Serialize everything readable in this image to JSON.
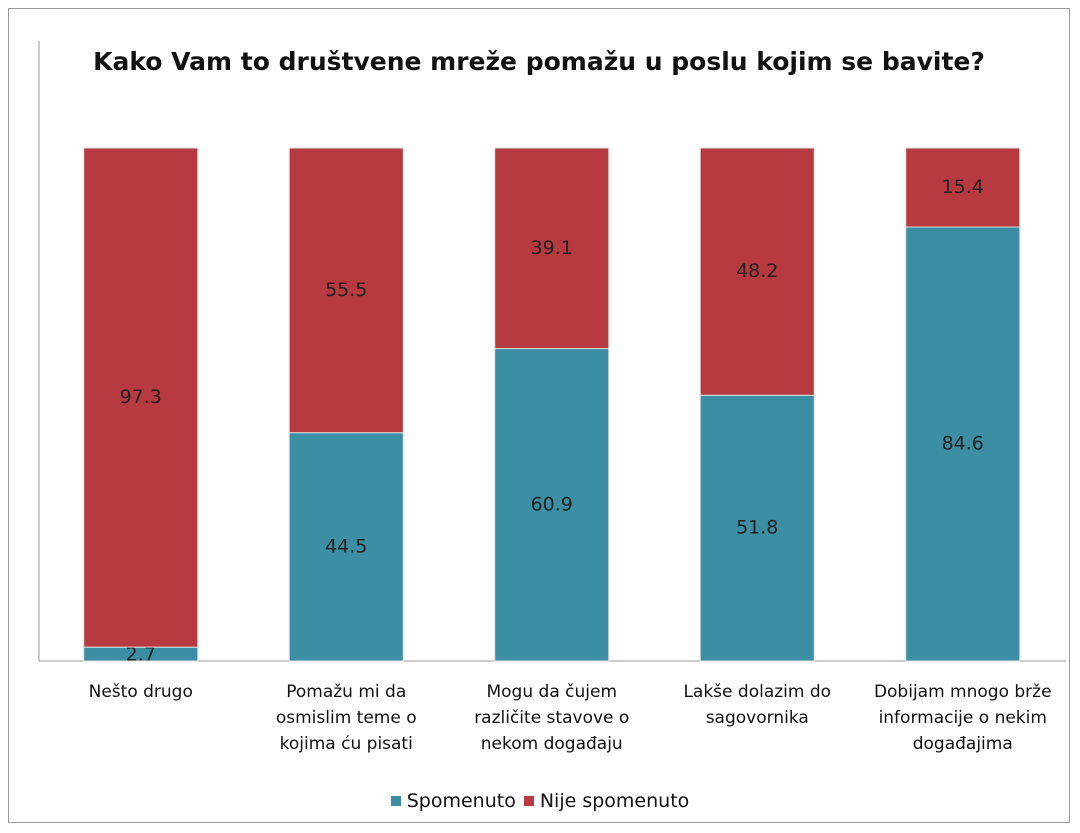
{
  "chart_data": {
    "type": "stacked-bar",
    "title": "Kako Vam to društvene mreže pomažu u poslu kojim se bavite?",
    "categories": [
      "Nešto drugo",
      "Pomažu mi da osmislim teme o kojima ću pisati",
      "Mogu da čujem različite stavove o nekom događaju",
      "Lakše dolazim do sagovornika",
      "Dobijam mnogo brže informacije o nekim događajima"
    ],
    "series": [
      {
        "name": "Spomenuto",
        "color": "#3b8ea3",
        "values": [
          2.7,
          44.5,
          60.9,
          51.8,
          84.6
        ]
      },
      {
        "name": "Nije spomenuto",
        "color": "#b73a40",
        "values": [
          97.3,
          55.5,
          39.1,
          48.2,
          15.4
        ]
      }
    ],
    "legend": "bottom"
  }
}
